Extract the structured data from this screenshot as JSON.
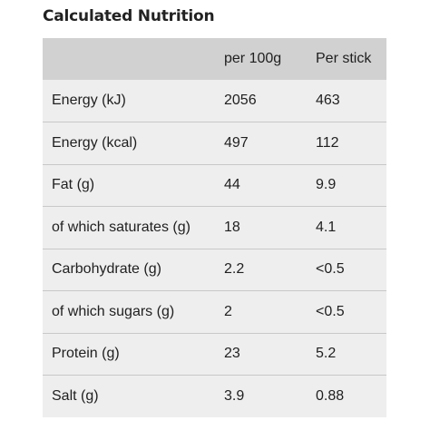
{
  "title": "Calculated Nutrition",
  "table": {
    "headers": [
      "",
      "per 100g",
      "Per stick"
    ],
    "rows": [
      {
        "name": "Energy (kJ)",
        "per_100g": "2056",
        "per_stick": "463"
      },
      {
        "name": "Energy (kcal)",
        "per_100g": "497",
        "per_stick": "112"
      },
      {
        "name": "Fat (g)",
        "per_100g": "44",
        "per_stick": "9.9"
      },
      {
        "name": "of which saturates (g)",
        "per_100g": "18",
        "per_stick": "4.1"
      },
      {
        "name": "Carbohydrate (g)",
        "per_100g": "2.2",
        "per_stick": "<0.5"
      },
      {
        "name": "of which sugars (g)",
        "per_100g": "2",
        "per_stick": "<0.5"
      },
      {
        "name": "Protein (g)",
        "per_100g": "23",
        "per_stick": "5.2"
      },
      {
        "name": "Salt (g)",
        "per_100g": "3.9",
        "per_stick": "0.88"
      }
    ]
  },
  "colors": {
    "header_background": "#d1d1d1",
    "row_background": "#eeeeee",
    "row_divider": "#c8c8c8"
  }
}
